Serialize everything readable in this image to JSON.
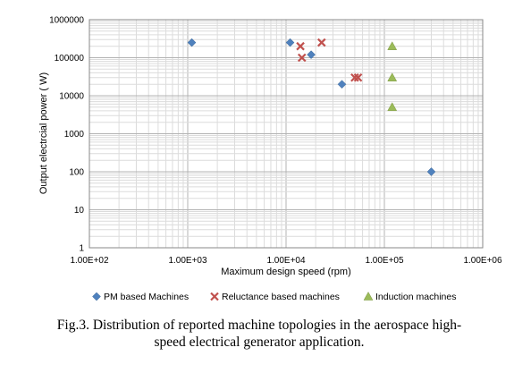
{
  "chart_data": {
    "type": "scatter",
    "x_scale": "log",
    "y_scale": "log",
    "xlabel": "Maximum design speed  (rpm)",
    "ylabel": "Output electrcial power ( W)",
    "xlim": [
      100,
      1000000
    ],
    "ylim": [
      1,
      1000000
    ],
    "grid": true,
    "legend_position": "bottom",
    "x_tick_labels": [
      "1.00E+02",
      "1.00E+03",
      "1.00E+04",
      "1.00E+05",
      "1.00E+06"
    ],
    "y_tick_labels": [
      "1",
      "10",
      "100",
      "1000",
      "10000",
      "100000",
      "1000000"
    ],
    "series": [
      {
        "name": "PM based Machines",
        "marker": "diamond",
        "color": "#4F81BD",
        "points": [
          [
            1100,
            250000
          ],
          [
            11000,
            250000
          ],
          [
            18000,
            120000
          ],
          [
            37000,
            20000
          ],
          [
            300000,
            100
          ]
        ]
      },
      {
        "name": "Reluctance based machines",
        "marker": "x",
        "color": "#C0504D",
        "points": [
          [
            14000,
            200000
          ],
          [
            14500,
            100000
          ],
          [
            23000,
            250000
          ],
          [
            50000,
            30000
          ],
          [
            54000,
            30000
          ]
        ]
      },
      {
        "name": "Induction machines",
        "marker": "triangle",
        "color": "#9BBB59",
        "points": [
          [
            120000,
            200000
          ],
          [
            120000,
            30000
          ],
          [
            120000,
            5000
          ]
        ]
      }
    ]
  },
  "caption": {
    "line1": "Fig.3. Distribution of reported machine topologies in the aerospace high-",
    "line2": "speed electrical generator application."
  }
}
